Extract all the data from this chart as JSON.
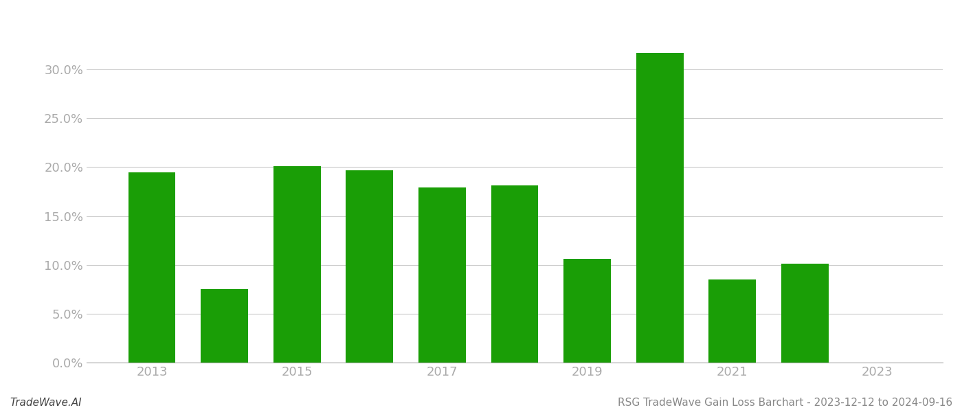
{
  "years": [
    2013,
    2014,
    2015,
    2016,
    2017,
    2018,
    2019,
    2020,
    2021,
    2022,
    2023
  ],
  "values": [
    0.195,
    0.075,
    0.201,
    0.197,
    0.179,
    0.181,
    0.106,
    0.317,
    0.085,
    0.101,
    null
  ],
  "bar_color": "#1a9e06",
  "background_color": "#ffffff",
  "title": "RSG TradeWave Gain Loss Barchart - 2023-12-12 to 2024-09-16",
  "footer_left": "TradeWave.AI",
  "ylabel_color": "#aaaaaa",
  "grid_color": "#cccccc",
  "ylim": [
    0,
    0.35
  ],
  "yticks": [
    0.0,
    0.05,
    0.1,
    0.15,
    0.2,
    0.25,
    0.3
  ],
  "xticks": [
    2013,
    2015,
    2017,
    2019,
    2021,
    2023
  ],
  "title_fontsize": 11,
  "footer_fontsize": 11,
  "tick_fontsize": 13,
  "bar_width": 0.65
}
